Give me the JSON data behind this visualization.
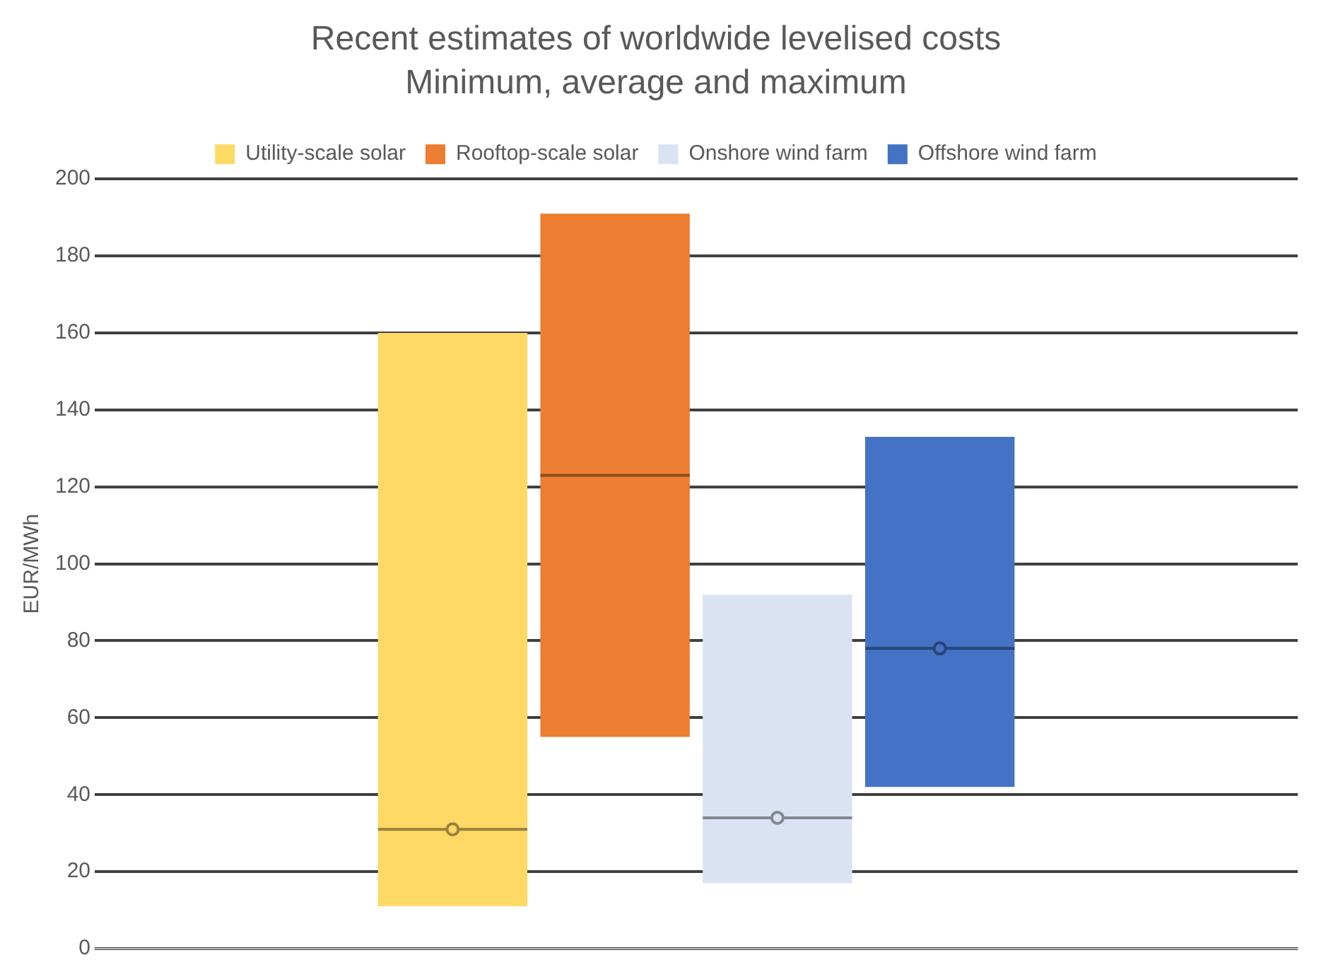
{
  "chart_data": {
    "type": "box",
    "title": "Recent estimates of worldwide levelised costs",
    "subtitle": "Minimum, average and maximum",
    "ylabel": "EUR/MWh",
    "categories": [
      null
    ],
    "series": [
      {
        "name": "Utility-scale solar",
        "color": "#ffd966",
        "boxes": [
          {
            "low": 11,
            "q1": 11,
            "median": 31,
            "q3": 160,
            "high": 160,
            "mean": 31
          }
        ]
      },
      {
        "name": "Rooftop-scale solar",
        "color": "#ed7d31",
        "boxes": [
          {
            "low": 55,
            "q1": 55,
            "median": 123,
            "q3": 191,
            "high": 191
          }
        ]
      },
      {
        "name": "Onshore wind farm",
        "color": "#dae3f3",
        "boxes": [
          {
            "low": 17,
            "q1": 17,
            "median": 34,
            "q3": 92,
            "high": 92,
            "mean": 34
          }
        ]
      },
      {
        "name": "Offshore wind farm",
        "color": "#4472c4",
        "boxes": [
          {
            "low": 42,
            "q1": 42,
            "median": 78,
            "q3": 133,
            "high": 133,
            "mean": 78
          }
        ]
      }
    ],
    "ylim": [
      0,
      200
    ],
    "yticks": [
      0,
      20,
      40,
      60,
      80,
      100,
      120,
      140,
      160,
      180,
      200
    ],
    "grid": "y",
    "legend": "top"
  }
}
